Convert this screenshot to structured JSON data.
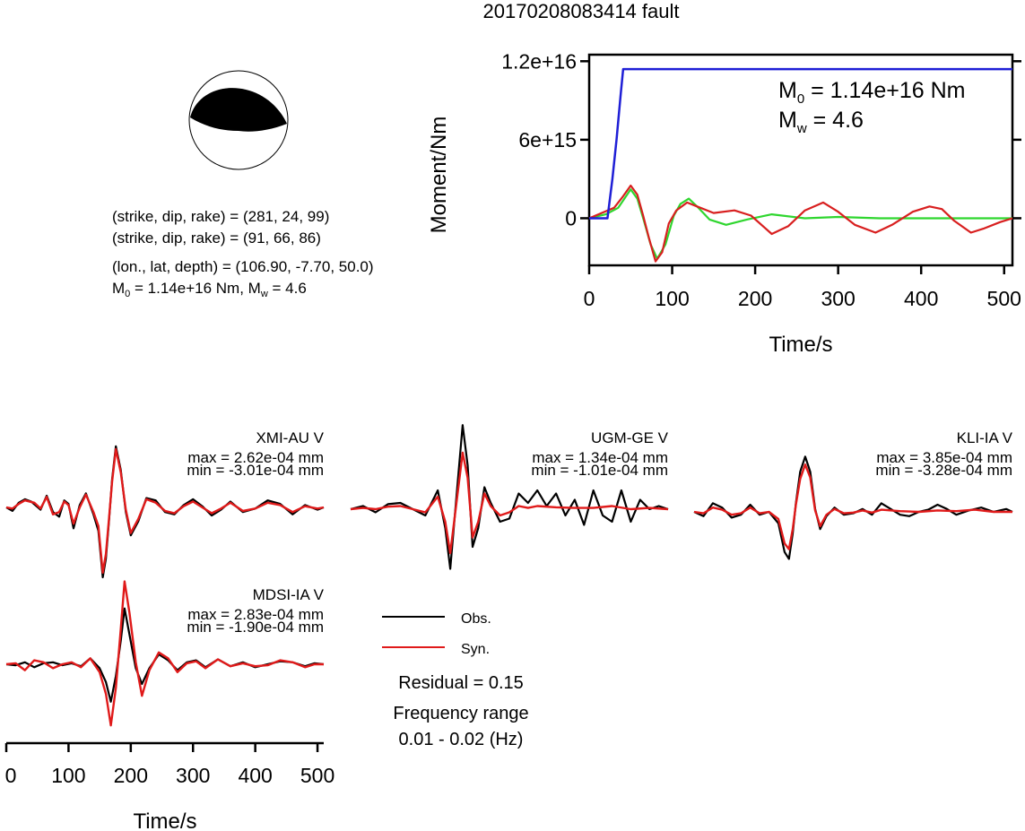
{
  "title": "20170208083414 fault",
  "mechanism_info": {
    "line1": "(strike, dip, rake) = (281, 24, 99)",
    "line2": "(strike, dip, rake) = (91, 66, 86)",
    "line3": "(lon., lat, depth) = (106.90, -7.70, 50.0)",
    "m0_label": "M",
    "m0_sub": "0",
    "m0_value": " = 1.14e+16 Nm, M",
    "mw_sub": "w",
    "mw_value": " = 4.6"
  },
  "moment_panel": {
    "annot_m0_label": "M",
    "annot_m0_sub": "0",
    "annot_m0_value": " = 1.14e+16 Nm",
    "annot_mw_label": "M",
    "annot_mw_sub": "w",
    "annot_mw_value": " = 4.6"
  },
  "legend": {
    "obs": "Obs.",
    "syn": "Syn.",
    "residual": "Residual = 0.15",
    "freq_title": "Frequency range",
    "freq_value": "0.01 - 0.02 (Hz)"
  },
  "colors": {
    "cumulative_moment": "#1f1fd6",
    "moment_rate": "#d81f1f",
    "moment_rate_fit": "#2fd62f",
    "observed": "#000000",
    "synthetic": "#e01a1a",
    "beachball_fill": "#000000"
  },
  "chart_data": [
    {
      "type": "line",
      "title": "",
      "xlabel": "Time/s",
      "ylabel": "Moment/Nm",
      "xlim": [
        0,
        510
      ],
      "ylim": [
        -3600000000000000.0,
        1.25e+16
      ],
      "x_ticks": [
        0,
        100,
        200,
        300,
        400,
        500
      ],
      "y_ticks": [
        0,
        6000000000000000.0,
        1.2e+16
      ],
      "y_tick_labels": [
        "0",
        "6e+15",
        "1.2e+16"
      ],
      "series": [
        {
          "key": "cumulative_moment",
          "x": [
            0,
            22,
            28,
            33,
            38,
            41,
            510
          ],
          "y": [
            0,
            0,
            3000000000000000.0,
            6000000000000000.0,
            9500000000000000.0,
            1.14e+16,
            1.14e+16
          ]
        },
        {
          "key": "moment_rate",
          "x": [
            0,
            15,
            30,
            40,
            50,
            58,
            65,
            72,
            80,
            88,
            96,
            105,
            118,
            130,
            150,
            175,
            195,
            220,
            240,
            260,
            282,
            300,
            320,
            345,
            365,
            390,
            410,
            425,
            440,
            460,
            475,
            495,
            510
          ],
          "y": [
            0,
            400000000000000.0,
            800000000000000.0,
            1600000000000000.0,
            2500000000000000.0,
            1800000000000000.0,
            200000000000000.0,
            -1500000000000000.0,
            -3300000000000000.0,
            -2600000000000000.0,
            -400000000000000.0,
            600000000000000.0,
            1200000000000000.0,
            900000000000000.0,
            400000000000000.0,
            600000000000000.0,
            200000000000000.0,
            -1200000000000000.0,
            -600000000000000.0,
            600000000000000.0,
            1200000000000000.0,
            500000000000000.0,
            -500000000000000.0,
            -1100000000000000.0,
            -500000000000000.0,
            500000000000000.0,
            900000000000000.0,
            700000000000000.0,
            -200000000000000.0,
            -1100000000000000.0,
            -800000000000000.0,
            -300000000000000.0,
            0
          ]
        },
        {
          "key": "moment_rate_fit",
          "x": [
            0,
            20,
            35,
            50,
            58,
            66,
            74,
            82,
            92,
            102,
            110,
            120,
            130,
            145,
            165,
            190,
            220,
            260,
            300,
            350,
            400,
            450,
            510
          ],
          "y": [
            0,
            300000000000000.0,
            800000000000000.0,
            2200000000000000.0,
            1500000000000000.0,
            -200000000000000.0,
            -2000000000000000.0,
            -3100000000000000.0,
            -2000000000000000.0,
            200000000000000.0,
            1100000000000000.0,
            1500000000000000.0,
            900000000000000.0,
            -100000000000000.0,
            -500000000000000.0,
            -100000000000000.0,
            300000000000000.0,
            0,
            100000000000000.0,
            0,
            0,
            0,
            0
          ]
        }
      ]
    },
    {
      "type": "line",
      "title": "XMI-AU V",
      "annotation_max": "max = 2.62e-04 mm",
      "annotation_min": "min = -3.01e-04 mm",
      "series": [
        {
          "key": "observed",
          "x": [
            0,
            10,
            20,
            30,
            40,
            55,
            65,
            75,
            85,
            93,
            100,
            108,
            118,
            128,
            140,
            148,
            155,
            160,
            165,
            170,
            176,
            184,
            192,
            200,
            212,
            225,
            240,
            255,
            270,
            285,
            300,
            315,
            330,
            345,
            360,
            380,
            400,
            420,
            440,
            460,
            480,
            500,
            510
          ],
          "y": [
            0,
            -0.15,
            0.2,
            0.35,
            0.25,
            -0.1,
            0.5,
            -0.2,
            -0.4,
            0.3,
            0.15,
            -0.9,
            0.1,
            0.6,
            -0.3,
            -1.0,
            -3.0,
            -2.2,
            -0.6,
            1.2,
            2.62,
            1.6,
            -0.2,
            -1.2,
            -0.6,
            0.4,
            0.3,
            -0.2,
            -0.3,
            0.1,
            0.35,
            0.05,
            -0.35,
            -0.1,
            0.25,
            -0.2,
            -0.05,
            0.3,
            0.15,
            -0.3,
            0.1,
            -0.1,
            0
          ]
        },
        {
          "key": "synthetic",
          "x": [
            0,
            10,
            20,
            30,
            45,
            55,
            65,
            75,
            85,
            93,
            100,
            108,
            118,
            128,
            140,
            148,
            155,
            160,
            165,
            170,
            176,
            184,
            192,
            200,
            212,
            225,
            240,
            255,
            270,
            285,
            300,
            315,
            330,
            345,
            360,
            380,
            400,
            420,
            440,
            460,
            480,
            500,
            510
          ],
          "y": [
            0,
            -0.05,
            0.15,
            0.3,
            0.2,
            -0.05,
            0.45,
            -0.3,
            -0.2,
            0.25,
            0.1,
            -0.7,
            0.0,
            0.55,
            -0.2,
            -0.8,
            -2.8,
            -2.0,
            -0.5,
            1.1,
            2.5,
            1.5,
            -0.1,
            -1.1,
            -0.5,
            0.35,
            0.2,
            -0.15,
            -0.25,
            0.05,
            0.25,
            0.0,
            -0.25,
            -0.05,
            0.2,
            -0.15,
            -0.05,
            0.2,
            0.1,
            -0.2,
            0.05,
            -0.05,
            0
          ]
        }
      ]
    },
    {
      "type": "line",
      "title": "UGM-GE V",
      "annotation_max": "max = 1.34e-04 mm",
      "annotation_min": "min = -1.01e-04 mm",
      "series": [
        {
          "key": "observed",
          "x": [
            0,
            20,
            40,
            60,
            80,
            100,
            120,
            140,
            152,
            160,
            170,
            180,
            188,
            196,
            205,
            215,
            225,
            240,
            255,
            270,
            285,
            300,
            315,
            330,
            345,
            360,
            375,
            390,
            405,
            420,
            435,
            450,
            465,
            480,
            495,
            510
          ],
          "y": [
            0,
            0.05,
            -0.05,
            0.08,
            0.1,
            0.0,
            -0.1,
            0.3,
            -0.3,
            -0.95,
            0.2,
            1.34,
            0.7,
            -0.6,
            -0.3,
            0.35,
            0.1,
            -0.2,
            -0.15,
            0.25,
            0.1,
            0.3,
            0.05,
            0.25,
            -0.1,
            0.15,
            -0.25,
            0.3,
            -0.1,
            -0.2,
            0.3,
            -0.2,
            0.15,
            0.0,
            0.05,
            0
          ]
        },
        {
          "key": "synthetic",
          "x": [
            0,
            20,
            40,
            60,
            80,
            100,
            120,
            140,
            152,
            160,
            170,
            180,
            188,
            196,
            205,
            215,
            225,
            240,
            255,
            270,
            285,
            300,
            330,
            360,
            390,
            420,
            450,
            480,
            510
          ],
          "y": [
            0,
            0.02,
            0.0,
            0.04,
            0.05,
            0.0,
            -0.05,
            0.2,
            -0.2,
            -0.7,
            0.1,
            0.9,
            0.5,
            -0.45,
            -0.2,
            0.25,
            0.05,
            -0.1,
            -0.05,
            0.05,
            0.02,
            0.05,
            0.03,
            0.02,
            0.02,
            0.05,
            0.0,
            0.02,
            0
          ]
        }
      ]
    },
    {
      "type": "line",
      "title": "KLI-IA V",
      "annotation_max": "max = 3.85e-04 mm",
      "annotation_min": "min = -3.28e-04 mm",
      "series": [
        {
          "key": "observed",
          "x": [
            0,
            15,
            30,
            45,
            60,
            75,
            90,
            105,
            120,
            135,
            145,
            152,
            158,
            163,
            170,
            178,
            186,
            194,
            202,
            212,
            225,
            240,
            255,
            270,
            285,
            300,
            315,
            330,
            345,
            360,
            375,
            390,
            405,
            420,
            440,
            460,
            480,
            500,
            510
          ],
          "y": [
            0,
            -0.3,
            0.6,
            0.3,
            -0.4,
            -0.2,
            0.5,
            -0.2,
            0.0,
            -0.8,
            -2.8,
            -3.28,
            -1.5,
            0.6,
            2.8,
            3.85,
            2.8,
            0.2,
            -1.2,
            -0.3,
            0.3,
            -0.2,
            -0.1,
            0.2,
            -0.2,
            0.6,
            0.2,
            -0.2,
            -0.3,
            0.0,
            0.15,
            0.5,
            0.2,
            -0.2,
            0.1,
            0.3,
            0.0,
            0.2,
            0
          ]
        },
        {
          "key": "synthetic",
          "x": [
            0,
            15,
            30,
            45,
            60,
            75,
            90,
            105,
            120,
            135,
            145,
            152,
            158,
            163,
            170,
            178,
            186,
            194,
            202,
            212,
            225,
            240,
            255,
            270,
            285,
            300,
            330,
            360,
            390,
            420,
            450,
            480,
            510
          ],
          "y": [
            0,
            -0.1,
            0.3,
            0.15,
            -0.2,
            -0.1,
            0.3,
            -0.1,
            0.0,
            -0.5,
            -2.2,
            -2.6,
            -1.2,
            0.5,
            2.3,
            3.3,
            2.4,
            0.1,
            -1.0,
            -0.2,
            0.2,
            -0.1,
            -0.05,
            0.1,
            -0.05,
            0.15,
            0.05,
            0.0,
            0.1,
            0.05,
            0.15,
            0.0,
            0
          ]
        }
      ]
    },
    {
      "type": "line",
      "title": "MDSI-IA V",
      "annotation_max": "max = 2.83e-04 mm",
      "annotation_min": "min = -1.90e-04 mm",
      "series": [
        {
          "key": "observed",
          "x": [
            0,
            15,
            30,
            45,
            60,
            75,
            90,
            105,
            120,
            135,
            150,
            160,
            168,
            176,
            184,
            190,
            198,
            208,
            218,
            230,
            245,
            260,
            275,
            290,
            305,
            320,
            340,
            360,
            380,
            400,
            420,
            440,
            460,
            480,
            495,
            510
          ],
          "y": [
            0,
            -0.05,
            0.1,
            -0.15,
            0.05,
            0.1,
            -0.05,
            0.05,
            -0.1,
            0.3,
            -0.2,
            -0.9,
            -1.9,
            -0.6,
            1.2,
            2.83,
            1.5,
            -0.2,
            -1.0,
            -0.2,
            0.5,
            0.2,
            -0.3,
            0.1,
            0.2,
            -0.15,
            0.25,
            -0.1,
            0.1,
            -0.15,
            0.0,
            0.15,
            0.1,
            -0.1,
            0.05,
            0
          ]
        },
        {
          "key": "synthetic",
          "x": [
            0,
            15,
            30,
            45,
            60,
            75,
            90,
            105,
            120,
            135,
            150,
            160,
            168,
            176,
            184,
            190,
            198,
            208,
            218,
            230,
            245,
            260,
            275,
            290,
            305,
            320,
            340,
            360,
            380,
            400,
            420,
            440,
            460,
            480,
            495,
            510
          ],
          "y": [
            0,
            0.05,
            -0.3,
            0.2,
            0.1,
            -0.2,
            0.0,
            0.1,
            -0.15,
            0.3,
            -0.4,
            -1.5,
            -3.1,
            -1.2,
            1.8,
            4.2,
            2.6,
            0.1,
            -1.6,
            -0.3,
            0.6,
            0.3,
            -0.4,
            0.05,
            0.15,
            -0.2,
            0.25,
            -0.1,
            0.05,
            -0.1,
            -0.05,
            0.2,
            0.1,
            -0.15,
            0.0,
            0
          ]
        }
      ]
    },
    {
      "type": "line",
      "xlabel": "Time/s",
      "xlim": [
        0,
        510
      ],
      "x_ticks": [
        0,
        100,
        200,
        300,
        400,
        500
      ],
      "series": []
    }
  ]
}
